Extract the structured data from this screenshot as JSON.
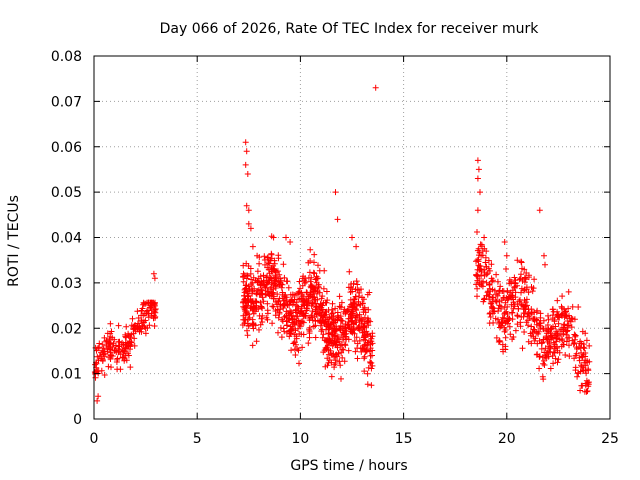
{
  "chart_data": {
    "type": "scatter",
    "title": "Day 066 of 2026, Rate Of TEC Index for receiver murk",
    "xlabel": "GPS time / hours",
    "ylabel": "ROTI / TECUs",
    "xlim": [
      0,
      25
    ],
    "ylim": [
      0,
      0.08
    ],
    "xticks": [
      "0",
      "5",
      "10",
      "15",
      "20",
      "25"
    ],
    "yticks": [
      "0",
      "0.01",
      "0.02",
      "0.03",
      "0.04",
      "0.05",
      "0.06",
      "0.07",
      "0.08"
    ],
    "grid": true,
    "marker": "+",
    "color": "#ff0000",
    "clusters": [
      {
        "x_start": 0.0,
        "x_end": 3.0,
        "y_min": 0.004,
        "y_max": 0.032,
        "trend_start": 0.011,
        "trend_end": 0.024,
        "n": 220
      },
      {
        "x_start": 7.2,
        "x_end": 13.5,
        "y_min": 0.005,
        "y_max": 0.061,
        "trend_start": 0.03,
        "trend_end": 0.018,
        "n": 900
      },
      {
        "x_start": 18.5,
        "x_end": 24.0,
        "y_min": 0.006,
        "y_max": 0.057,
        "trend_start": 0.03,
        "trend_end": 0.014,
        "n": 520
      }
    ],
    "points": [
      [
        7.35,
        0.061
      ],
      [
        7.4,
        0.059
      ],
      [
        7.35,
        0.056
      ],
      [
        7.45,
        0.054
      ],
      [
        7.4,
        0.047
      ],
      [
        7.5,
        0.046
      ],
      [
        7.5,
        0.043
      ],
      [
        7.6,
        0.042
      ],
      [
        7.7,
        0.038
      ],
      [
        7.9,
        0.036
      ],
      [
        8.7,
        0.04
      ],
      [
        9.3,
        0.04
      ],
      [
        9.5,
        0.039
      ],
      [
        11.7,
        0.05
      ],
      [
        11.8,
        0.044
      ],
      [
        12.5,
        0.04
      ],
      [
        12.7,
        0.038
      ],
      [
        13.65,
        0.073
      ],
      [
        18.6,
        0.057
      ],
      [
        18.65,
        0.055
      ],
      [
        18.6,
        0.053
      ],
      [
        18.7,
        0.05
      ],
      [
        18.6,
        0.046
      ],
      [
        18.9,
        0.04
      ],
      [
        19.0,
        0.037
      ],
      [
        19.9,
        0.039
      ],
      [
        20.0,
        0.036
      ],
      [
        21.6,
        0.046
      ],
      [
        21.8,
        0.036
      ],
      [
        21.85,
        0.034
      ],
      [
        23.0,
        0.028
      ],
      [
        23.3,
        0.022
      ],
      [
        0.15,
        0.004
      ],
      [
        0.2,
        0.005
      ],
      [
        2.9,
        0.032
      ],
      [
        2.95,
        0.031
      ]
    ]
  }
}
